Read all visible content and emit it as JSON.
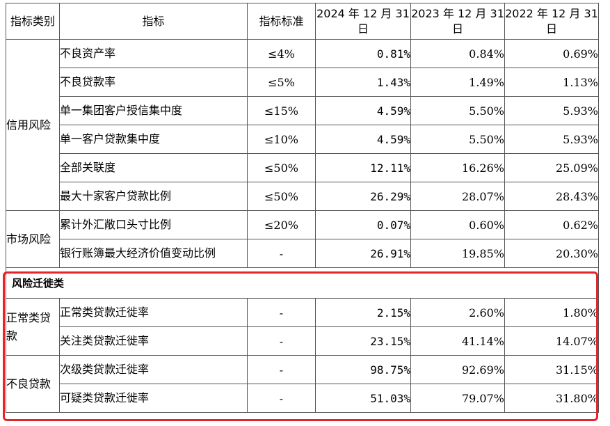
{
  "header": {
    "category": "指标类别",
    "indicator": "指标",
    "standard": "指标标准",
    "col_2024": "2024 年 12 月 31 日",
    "col_2023": "2023 年 12 月 31 日",
    "col_2022": "2022 年 12 月 31 日"
  },
  "groups": [
    {
      "category": "信用风险",
      "rows": [
        {
          "name": "不良资产率",
          "standard": "≤4%",
          "v2024": "0.81%",
          "v2023": "0.84%",
          "v2022": "0.69%"
        },
        {
          "name": "不良贷款率",
          "standard": "≤5%",
          "v2024": "1.43%",
          "v2023": "1.49%",
          "v2022": "1.13%"
        },
        {
          "name": "单一集团客户授信集中度",
          "standard": "≤15%",
          "v2024": "4.59%",
          "v2023": "5.50%",
          "v2022": "5.93%"
        },
        {
          "name": "单一客户贷款集中度",
          "standard": "≤10%",
          "v2024": "4.59%",
          "v2023": "5.50%",
          "v2022": "5.93%"
        },
        {
          "name": "全部关联度",
          "standard": "≤50%",
          "v2024": "12.11%",
          "v2023": "16.26%",
          "v2022": "25.09%"
        },
        {
          "name": "最大十家客户贷款比例",
          "standard": "≤50%",
          "v2024": "26.29%",
          "v2023": "28.07%",
          "v2022": "28.43%"
        }
      ]
    },
    {
      "category": "市场风险",
      "rows": [
        {
          "name": "累计外汇敞口头寸比例",
          "standard": "≤20%",
          "v2024": "0.07%",
          "v2023": "0.60%",
          "v2022": "0.62%"
        },
        {
          "name": "银行账簿最大经济价值变动比例",
          "standard": "-",
          "v2024": "26.91%",
          "v2023": "19.85%",
          "v2022": "20.30%"
        }
      ]
    }
  ],
  "section_title": "风险迁徙类",
  "migration_groups": [
    {
      "category": "正常类贷款",
      "rows": [
        {
          "name": "正常类贷款迁徙率",
          "standard": "-",
          "v2024": "2.15%",
          "v2023": "2.60%",
          "v2022": "1.80%"
        },
        {
          "name": "关注类贷款迁徙率",
          "standard": "-",
          "v2024": "23.15%",
          "v2023": "41.14%",
          "v2022": "14.07%"
        }
      ]
    },
    {
      "category": "不良贷款",
      "rows": [
        {
          "name": "次级类贷款迁徙率",
          "standard": "-",
          "v2024": "98.75%",
          "v2023": "92.69%",
          "v2022": "31.15%"
        },
        {
          "name": "可疑类贷款迁徙率",
          "standard": "-",
          "v2024": "51.03%",
          "v2023": "79.07%",
          "v2022": "31.80%"
        }
      ]
    }
  ],
  "highlight_color": "#e8232a"
}
